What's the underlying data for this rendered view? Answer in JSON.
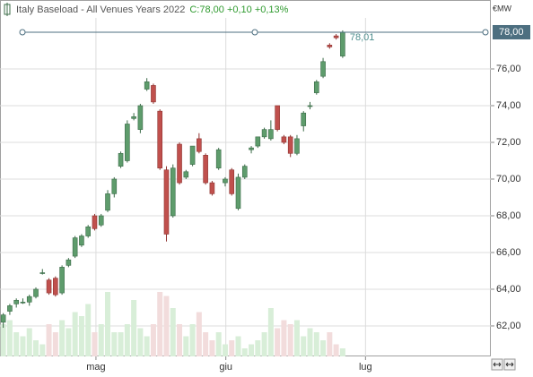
{
  "chart_data": {
    "type": "candlestick",
    "title": "Italy Baseload - All Venues Years 2022",
    "quote": "C:78,00 +0,10 +0,13%",
    "unit": "€MW",
    "last_label": "78,01",
    "price_line": {
      "value": 78,
      "label": "78,00"
    },
    "up_color": "#5e9c6c",
    "down_color": "#c0504d",
    "volume_up_color": "#d8eed8",
    "volume_down_color": "#f2dcdc",
    "grid": true,
    "xlim": [
      -0.5,
      74.7
    ],
    "xticks": [
      {
        "value": 14.2,
        "label": "mag"
      },
      {
        "value": 34.1,
        "label": "giu"
      },
      {
        "value": 55.5,
        "label": "lug"
      }
    ],
    "ylim": [
      60.34,
      78.78
    ],
    "yticks": [
      {
        "value": 62,
        "label": "62,00"
      },
      {
        "value": 64,
        "label": "64,00"
      },
      {
        "value": 66,
        "label": "66,00"
      },
      {
        "value": 68,
        "label": "68,00"
      },
      {
        "value": 70,
        "label": "70,00"
      },
      {
        "value": 72,
        "label": "72,00"
      },
      {
        "value": 74,
        "label": "74,00"
      },
      {
        "value": 76,
        "label": "76,00"
      }
    ],
    "y2lim": [
      0,
      100
    ],
    "open": [
      62.2,
      62.8,
      63.2,
      63.3,
      63.3,
      63.6,
      64.9,
      64.5,
      64.6,
      63.8,
      65.3,
      65.8,
      66.4,
      66.9,
      68.0,
      67.5,
      68.3,
      69.2,
      70.7,
      71.0,
      73.3,
      72.7,
      74.9,
      75.1,
      73.7,
      70.5,
      68.0,
      71.9,
      70.1,
      70.8,
      72.2,
      71.3,
      69.8,
      70.6,
      69.8,
      70.5,
      68.4,
      70.1,
      71.6,
      71.8,
      72.3,
      72.2,
      74.0,
      72.3,
      72.3,
      71.4,
      72.9,
      74.0,
      74.7,
      75.6,
      77.3,
      77.8,
      76.7
    ],
    "high": [
      62.7,
      63.2,
      63.5,
      63.5,
      63.7,
      64.1,
      65.1,
      64.6,
      64.7,
      65.3,
      65.7,
      66.9,
      67.0,
      67.5,
      68.1,
      68.1,
      69.4,
      70.1,
      71.5,
      73.2,
      73.6,
      74.1,
      75.5,
      75.2,
      73.8,
      70.7,
      70.8,
      72.0,
      70.5,
      71.8,
      72.5,
      71.4,
      69.9,
      71.7,
      70.1,
      70.6,
      70.3,
      70.8,
      71.8,
      72.3,
      72.8,
      73.2,
      74.0,
      72.4,
      72.4,
      72.4,
      73.7,
      74.2,
      75.4,
      76.6,
      77.4,
      77.9,
      78.1
    ],
    "low": [
      61.9,
      62.6,
      63.0,
      63.2,
      63.1,
      63.5,
      64.8,
      63.7,
      63.6,
      63.7,
      65.2,
      65.7,
      66.3,
      66.8,
      67.2,
      67.4,
      68.2,
      69.0,
      70.6,
      70.9,
      73.2,
      72.5,
      74.8,
      74.1,
      70.5,
      66.6,
      67.9,
      69.7,
      70.0,
      70.7,
      71.4,
      69.7,
      69.1,
      70.5,
      69.6,
      69.1,
      68.3,
      70.0,
      71.4,
      71.7,
      72.2,
      72.1,
      72.6,
      71.9,
      71.2,
      71.3,
      72.6,
      73.8,
      74.6,
      75.5,
      77.1,
      77.6,
      76.6
    ],
    "close": [
      62.6,
      63.1,
      63.4,
      63.3,
      63.6,
      64.0,
      64.9,
      63.8,
      63.7,
      65.2,
      65.6,
      66.8,
      66.9,
      67.4,
      67.3,
      68.0,
      69.2,
      70.0,
      71.4,
      73.0,
      73.4,
      74.0,
      75.3,
      74.2,
      70.6,
      67.0,
      70.6,
      69.8,
      70.4,
      71.8,
      71.5,
      69.8,
      69.2,
      71.6,
      70.0,
      69.2,
      70.1,
      70.7,
      71.7,
      72.3,
      72.7,
      72.7,
      72.7,
      72.0,
      71.4,
      72.2,
      73.6,
      74.0,
      75.3,
      76.4,
      77.2,
      77.7,
      78.0
    ],
    "volume": [
      40,
      45,
      30,
      25,
      35,
      20,
      15,
      40,
      30,
      45,
      35,
      55,
      50,
      65,
      30,
      40,
      80,
      30,
      30,
      40,
      70,
      35,
      25,
      40,
      80,
      75,
      60,
      40,
      25,
      40,
      55,
      30,
      20,
      30,
      15,
      20,
      25,
      10,
      15,
      20,
      30,
      60,
      35,
      45,
      40,
      45,
      25,
      35,
      30,
      20,
      30,
      15,
      10
    ]
  }
}
